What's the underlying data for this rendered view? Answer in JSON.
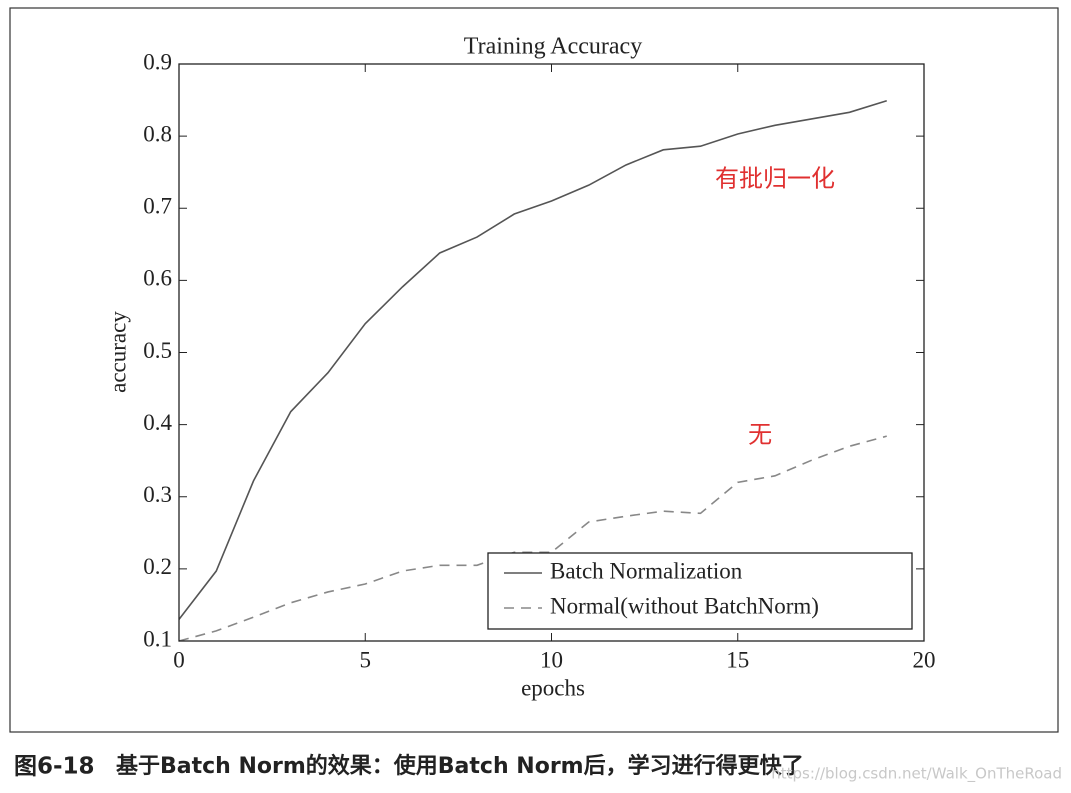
{
  "chart_data": {
    "type": "line",
    "title": "Training Accuracy",
    "x_label": "epochs",
    "y_label": "accuracy",
    "x": [
      0,
      1,
      2,
      3,
      4,
      5,
      6,
      7,
      8,
      9,
      10,
      11,
      12,
      13,
      14,
      15,
      16,
      17,
      18,
      19
    ],
    "series": [
      {
        "name": "Batch Normalization",
        "color": "#555555",
        "dash": "solid",
        "values": [
          0.13,
          0.197,
          0.322,
          0.418,
          0.472,
          0.54,
          0.591,
          0.638,
          0.66,
          0.692,
          0.71,
          0.732,
          0.76,
          0.781,
          0.786,
          0.803,
          0.815,
          0.824,
          0.833,
          0.849
        ]
      },
      {
        "name": "Normal(without BatchNorm)",
        "color": "#888888",
        "dash": "dashed",
        "values": [
          0.1,
          0.114,
          0.133,
          0.153,
          0.168,
          0.179,
          0.197,
          0.205,
          0.205,
          0.223,
          0.223,
          0.265,
          0.273,
          0.28,
          0.277,
          0.32,
          0.329,
          0.351,
          0.37,
          0.384
        ]
      }
    ],
    "xlim": [
      0,
      20
    ],
    "xticks": [
      0,
      5,
      10,
      15,
      20
    ],
    "ylim": [
      0.1,
      0.9
    ],
    "yticks": [
      0.1,
      0.2,
      0.3,
      0.4,
      0.5,
      0.6,
      0.7,
      0.8,
      0.9
    ],
    "legend": "lower right",
    "annotations": [
      {
        "text": "有批归一化",
        "x": 16,
        "y": 0.74,
        "color": "#e03030"
      },
      {
        "text": "无",
        "x": 15.6,
        "y": 0.385,
        "color": "#e03030"
      }
    ]
  },
  "caption": {
    "figure": "图6-18",
    "text": "基于Batch Norm的效果：使用Batch Norm后，学习进行得更快了"
  },
  "watermark": "https://blog.csdn.net/Walk_OnTheRoad"
}
